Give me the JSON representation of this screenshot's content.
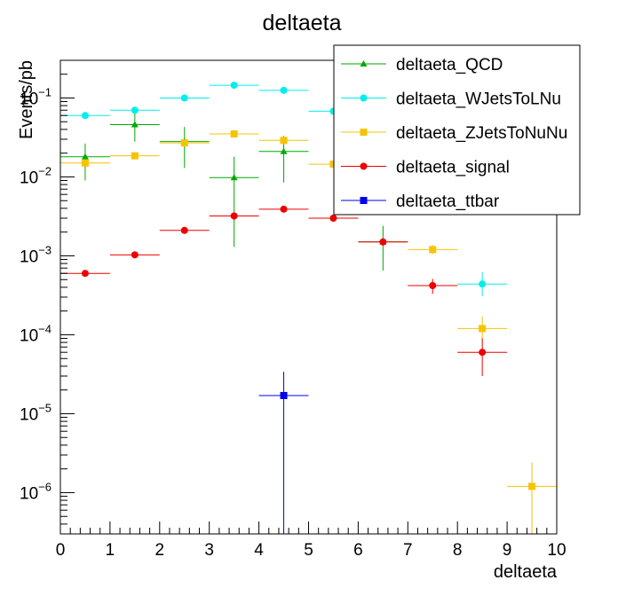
{
  "chart_data": {
    "type": "scatter",
    "title": "deltaeta",
    "xlabel": "deltaeta",
    "ylabel": "Events/pb",
    "xlim": [
      0,
      10
    ],
    "ylim": [
      3e-07,
      0.3
    ],
    "yscale": "log",
    "x_ticks": [
      {
        "value": 0,
        "label": "0"
      },
      {
        "value": 1,
        "label": "1"
      },
      {
        "value": 2,
        "label": "2"
      },
      {
        "value": 3,
        "label": "3"
      },
      {
        "value": 4,
        "label": "4"
      },
      {
        "value": 5,
        "label": "5"
      },
      {
        "value": 6,
        "label": "6"
      },
      {
        "value": 7,
        "label": "7"
      },
      {
        "value": 8,
        "label": "8"
      },
      {
        "value": 9,
        "label": "9"
      },
      {
        "value": 10,
        "label": "10"
      }
    ],
    "y_ticks": [
      {
        "value": 1e-06,
        "base": "10",
        "exp": "−6"
      },
      {
        "value": 1e-05,
        "base": "10",
        "exp": "−5"
      },
      {
        "value": 0.0001,
        "base": "10",
        "exp": "−4"
      },
      {
        "value": 0.001,
        "base": "10",
        "exp": "−3"
      },
      {
        "value": 0.01,
        "base": "10",
        "exp": "−2"
      },
      {
        "value": 0.1,
        "base": "10",
        "exp": "−1"
      }
    ],
    "grid": false,
    "legend_position": "top-right",
    "series": [
      {
        "name": "deltaeta_QCD",
        "color": "#00aa00",
        "marker": "triangle",
        "points": [
          {
            "x": 0.5,
            "y": 0.018,
            "err_lo": 0.009,
            "err_hi": 0.0265
          },
          {
            "x": 1.5,
            "y": 0.046,
            "err_lo": 0.028,
            "err_hi": 0.072
          },
          {
            "x": 2.5,
            "y": 0.028,
            "err_lo": 0.013,
            "err_hi": 0.043
          },
          {
            "x": 3.5,
            "y": 0.0098,
            "err_lo": 0.0013,
            "err_hi": 0.018
          },
          {
            "x": 4.5,
            "y": 0.021,
            "err_lo": 0.0085,
            "err_hi": 0.033
          },
          {
            "x": 6.5,
            "y": 0.0015,
            "err_lo": 0.00065,
            "err_hi": 0.0024
          }
        ]
      },
      {
        "name": "deltaeta_WJetsToLNu",
        "color": "#00eeee",
        "marker": "circle",
        "points": [
          {
            "x": 0.5,
            "y": 0.06
          },
          {
            "x": 1.5,
            "y": 0.07
          },
          {
            "x": 2.5,
            "y": 0.1
          },
          {
            "x": 3.5,
            "y": 0.145
          },
          {
            "x": 4.5,
            "y": 0.125
          },
          {
            "x": 5.5,
            "y": 0.068
          },
          {
            "x": 8.5,
            "y": 0.00044,
            "err_lo": 0.00031,
            "err_hi": 0.00062
          }
        ]
      },
      {
        "name": "deltaeta_ZJetsToNuNu",
        "color": "#f5c400",
        "marker": "square",
        "points": [
          {
            "x": 0.5,
            "y": 0.015
          },
          {
            "x": 1.5,
            "y": 0.0185
          },
          {
            "x": 2.5,
            "y": 0.027
          },
          {
            "x": 3.5,
            "y": 0.035
          },
          {
            "x": 4.5,
            "y": 0.029
          },
          {
            "x": 5.5,
            "y": 0.0145
          },
          {
            "x": 7.5,
            "y": 0.0012,
            "err_lo": 0.00105,
            "err_hi": 0.00137
          },
          {
            "x": 8.5,
            "y": 0.00012,
            "err_lo": 8.3e-05,
            "err_hi": 0.00017
          },
          {
            "x": 9.5,
            "y": 1.2e-06,
            "err_lo": 3e-07,
            "err_hi": 2.4e-06
          }
        ]
      },
      {
        "name": "deltaeta_signal",
        "color": "#ee0000",
        "marker": "circle",
        "points": [
          {
            "x": 0.5,
            "y": 0.0006
          },
          {
            "x": 1.5,
            "y": 0.00103
          },
          {
            "x": 2.5,
            "y": 0.0021
          },
          {
            "x": 3.5,
            "y": 0.0032
          },
          {
            "x": 4.5,
            "y": 0.0039
          },
          {
            "x": 5.5,
            "y": 0.003
          },
          {
            "x": 6.5,
            "y": 0.0015
          },
          {
            "x": 7.5,
            "y": 0.00042,
            "err_lo": 0.00033,
            "err_hi": 0.00051
          },
          {
            "x": 8.5,
            "y": 6e-05,
            "err_lo": 3e-05,
            "err_hi": 9e-05
          }
        ]
      },
      {
        "name": "deltaeta_ttbar",
        "color": "#0000ee",
        "marker": "square",
        "points": [
          {
            "x": 4.5,
            "y": 1.7e-05,
            "err_lo": 3e-07,
            "err_hi": 3.4e-05
          }
        ]
      }
    ]
  }
}
